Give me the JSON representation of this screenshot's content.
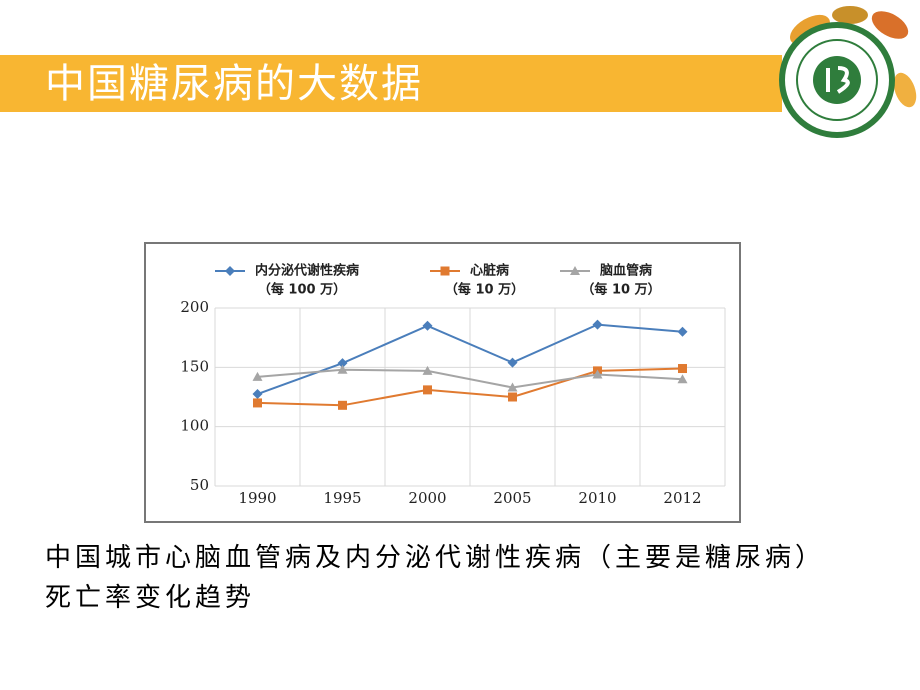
{
  "header": {
    "title": "中国糖尿病的大数据"
  },
  "chart_data": {
    "type": "line",
    "categories": [
      "1990",
      "1995",
      "2000",
      "2005",
      "2010",
      "2012"
    ],
    "series": [
      {
        "name": "内分泌代谢性疾病",
        "unit": "（每 100 万）",
        "color": "#4a7ebb",
        "marker": "diamond",
        "values": [
          127.5,
          153.5,
          185,
          154,
          186,
          180
        ]
      },
      {
        "name": "心脏病",
        "unit": "（每 10 万）",
        "color": "#e07a30",
        "marker": "square",
        "values": [
          120,
          118,
          131,
          125,
          147,
          149
        ]
      },
      {
        "name": "脑血管病",
        "unit": "（每 10 万）",
        "color": "#a5a5a5",
        "marker": "triangle",
        "values": [
          142,
          148,
          147,
          133,
          144,
          140
        ]
      }
    ],
    "ylim": [
      50,
      200
    ],
    "yticks": [
      50,
      100,
      150,
      200
    ],
    "grid": true,
    "legend": "top"
  },
  "caption": "中国城市心脑血管病及内分泌代谢性疾病（主要是糖尿病）死亡率变化趋势"
}
